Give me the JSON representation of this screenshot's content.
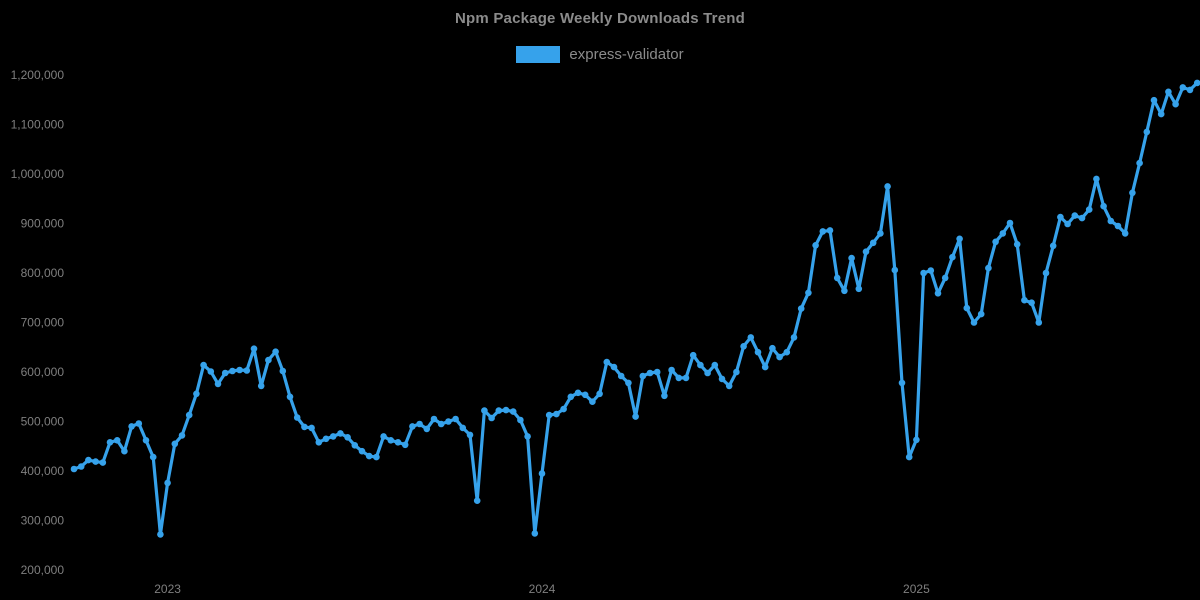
{
  "chart_data": {
    "type": "line",
    "title": "Npm Package Weekly Downloads Trend",
    "legend_position": "top",
    "grid": false,
    "background": "#000000",
    "cadence": "weekly",
    "axes": {
      "y_min": 200000,
      "y_max": 1200000,
      "y_step": 100000,
      "y_tick_labels": [
        "200,000",
        "300,000",
        "400,000",
        "500,000",
        "600,000",
        "700,000",
        "800,000",
        "900,000",
        "1,000,000",
        "1,100,000",
        "1,200,000"
      ],
      "x_tick_labels": [
        "2023",
        "2024",
        "2025"
      ],
      "x_tick_indices": [
        13,
        65,
        117
      ]
    },
    "colors": {
      "line": "#36a2eb",
      "point": "#36a2eb",
      "title_text": "#8b8b8b",
      "tick_text": "#7f7f7f",
      "background": "#000000"
    },
    "series": [
      {
        "name": "express-validator",
        "color": "#36a2eb",
        "values": [
          404000,
          409000,
          422000,
          419000,
          417000,
          458000,
          462000,
          440000,
          490000,
          496000,
          462000,
          428000,
          272000,
          376000,
          455000,
          472000,
          513000,
          556000,
          614000,
          601000,
          576000,
          598000,
          602000,
          604000,
          603000,
          647000,
          572000,
          624000,
          641000,
          602000,
          550000,
          508000,
          489000,
          487000,
          458000,
          465000,
          470000,
          476000,
          468000,
          452000,
          440000,
          430000,
          428000,
          470000,
          462000,
          458000,
          453000,
          490000,
          495000,
          485000,
          505000,
          495000,
          500000,
          505000,
          487000,
          473000,
          340000,
          522000,
          507000,
          522000,
          523000,
          520000,
          503000,
          470000,
          274000,
          395000,
          513000,
          515000,
          525000,
          550000,
          558000,
          554000,
          540000,
          556000,
          620000,
          610000,
          592000,
          578000,
          510000,
          592000,
          598000,
          600000,
          552000,
          604000,
          588000,
          588000,
          634000,
          614000,
          598000,
          614000,
          586000,
          572000,
          600000,
          652000,
          670000,
          640000,
          610000,
          648000,
          630000,
          640000,
          670000,
          728000,
          760000,
          856000,
          884000,
          886000,
          790000,
          764000,
          830000,
          768000,
          843000,
          861000,
          880000,
          975000,
          806000,
          578000,
          428000,
          463000,
          800000,
          805000,
          759000,
          790000,
          832000,
          869000,
          729000,
          700000,
          717000,
          810000,
          863000,
          880000,
          901000,
          858000,
          745000,
          740000,
          700000,
          800000,
          855000,
          913000,
          899000,
          916000,
          911000,
          928000,
          990000,
          935000,
          905000,
          895000,
          880000,
          962000,
          1022000,
          1085000,
          1149000,
          1121000,
          1166000,
          1141000,
          1175000,
          1170000,
          1184000
        ]
      }
    ]
  }
}
